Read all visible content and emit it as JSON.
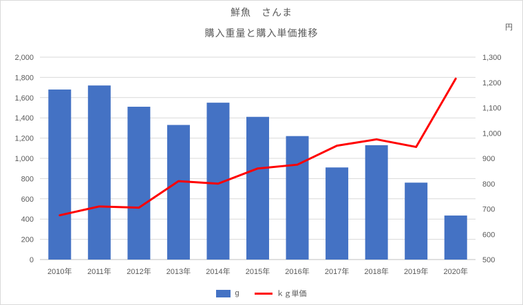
{
  "title": "鮮魚　さんま",
  "subtitle": "購入重量と購入単価推移",
  "colors": {
    "bar": "#4472C4",
    "line": "#FF0000",
    "grid": "#D9D9D9",
    "axis": "#BFBFBF",
    "text": "#595959",
    "border": "#D9D9D9"
  },
  "chart_data": {
    "type": "bar+line combo",
    "title": "鮮魚　さんま",
    "subtitle": "購入重量と購入単価推移",
    "grid": true,
    "legend_position": "bottom",
    "categories": [
      "2010年",
      "2011年",
      "2012年",
      "2013年",
      "2014年",
      "2015年",
      "2016年",
      "2017年",
      "2018年",
      "2019年",
      "2020年"
    ],
    "series": [
      {
        "name": "g",
        "type": "bar",
        "axis": "left",
        "values": [
          1680,
          1720,
          1510,
          1330,
          1550,
          1410,
          1220,
          910,
          1130,
          760,
          435
        ]
      },
      {
        "name": "ｋｇ単価",
        "type": "line",
        "axis": "right",
        "values": [
          675,
          710,
          705,
          810,
          800,
          860,
          875,
          950,
          975,
          945,
          1215
        ]
      }
    ],
    "left_axis": {
      "min": 0,
      "max": 2000,
      "step": 200,
      "tick_labels": [
        "0",
        "200",
        "400",
        "600",
        "800",
        "1,000",
        "1,200",
        "1,400",
        "1,600",
        "1,800",
        "2,000"
      ]
    },
    "right_axis": {
      "min": 500,
      "max": 1300,
      "step": 100,
      "unit": "円",
      "tick_labels": [
        "500",
        "600",
        "700",
        "800",
        "900",
        "1,000",
        "1,100",
        "1,200",
        "1,300"
      ]
    }
  }
}
